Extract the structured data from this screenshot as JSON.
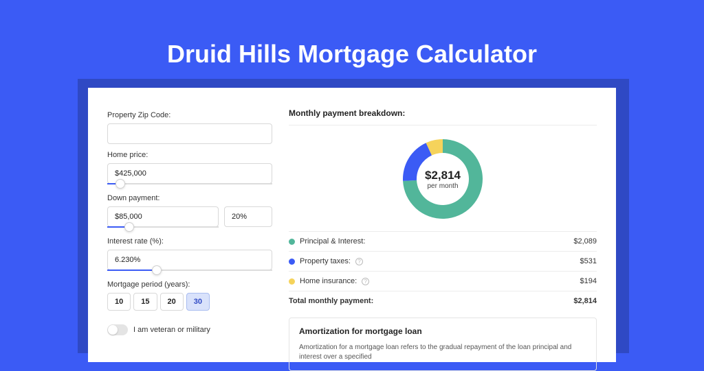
{
  "page": {
    "title": "Druid Hills Mortgage Calculator",
    "background_color": "#3b5bf5",
    "shadow_color": "#2f49c4",
    "card_color": "#ffffff"
  },
  "form": {
    "zip": {
      "label": "Property Zip Code:",
      "value": ""
    },
    "home_price": {
      "label": "Home price:",
      "value": "$425,000",
      "slider_pct": 8
    },
    "down_payment": {
      "label": "Down payment:",
      "value": "$85,000",
      "percent_value": "20%",
      "slider_pct": 20
    },
    "interest_rate": {
      "label": "Interest rate (%):",
      "value": "6.230%",
      "slider_pct": 30
    },
    "period": {
      "label": "Mortgage period (years):",
      "options": [
        "10",
        "15",
        "20",
        "30"
      ],
      "selected": "30"
    },
    "veteran": {
      "label": "I am veteran or military",
      "checked": false
    }
  },
  "breakdown": {
    "title": "Monthly payment breakdown:",
    "chart": {
      "type": "donut",
      "center_amount": "$2,814",
      "center_sub": "per month",
      "slices": [
        {
          "name": "principal_interest",
          "value": 2089,
          "pct": 74.2,
          "color": "#52b69a"
        },
        {
          "name": "property_taxes",
          "value": 531,
          "pct": 18.9,
          "color": "#3b5bf5"
        },
        {
          "name": "home_insurance",
          "value": 194,
          "pct": 6.9,
          "color": "#f5d35b"
        }
      ],
      "radius_outer": 58,
      "radius_inner": 38,
      "background": "#ffffff"
    },
    "rows": [
      {
        "label": "Principal & Interest:",
        "value": "$2,089",
        "dot": "#52b69a",
        "info": false
      },
      {
        "label": "Property taxes:",
        "value": "$531",
        "dot": "#3b5bf5",
        "info": true
      },
      {
        "label": "Home insurance:",
        "value": "$194",
        "dot": "#f5d35b",
        "info": true
      }
    ],
    "total": {
      "label": "Total monthly payment:",
      "value": "$2,814"
    }
  },
  "amortization": {
    "title": "Amortization for mortgage loan",
    "text": "Amortization for a mortgage loan refers to the gradual repayment of the loan principal and interest over a specified"
  }
}
